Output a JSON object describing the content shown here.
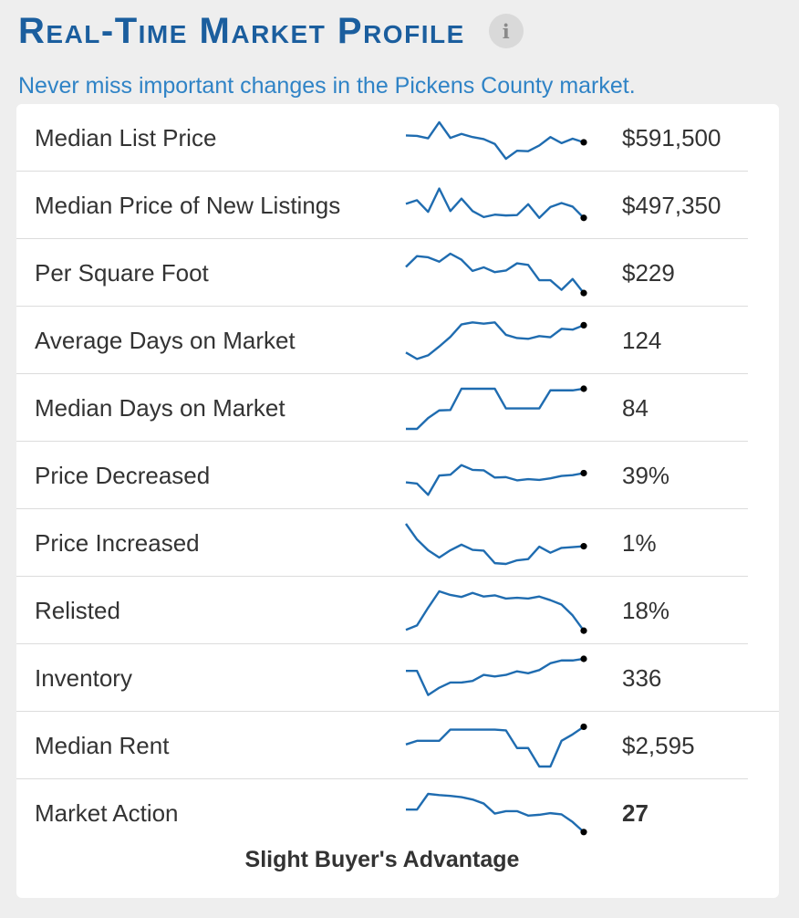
{
  "header": {
    "title": "Real-Time Market Profile",
    "info_icon_glyph": "i",
    "subtitle": "Never miss important changes in the Pickens County market."
  },
  "colors": {
    "title": "#1b5e9e",
    "subtitle": "#2f83c6",
    "sparkline": "#1f6cb0",
    "end_dot": "#000000"
  },
  "rows": [
    {
      "label": "Median List Price",
      "value": "$591,500",
      "trend": [
        58,
        57,
        51,
        91,
        52,
        62,
        54,
        49,
        37,
        0,
        20,
        19,
        33,
        54,
        39,
        50,
        41
      ]
    },
    {
      "label": "Median Price of New Listings",
      "value": "$497,350",
      "trend": [
        56,
        65,
        36,
        94,
        38,
        69,
        38,
        23,
        29,
        27,
        28,
        55,
        21,
        48,
        58,
        49,
        21
      ]
    },
    {
      "label": "Per Square Foot",
      "value": "$229",
      "trend": [
        67,
        94,
        91,
        80,
        100,
        85,
        57,
        66,
        54,
        58,
        76,
        72,
        34,
        34,
        10,
        37,
        2
      ]
    },
    {
      "label": "Average Days on Market",
      "value": "124",
      "trend": [
        22,
        6,
        15,
        37,
        61,
        92,
        97,
        94,
        97,
        66,
        58,
        56,
        63,
        60,
        81,
        79,
        90
      ]
    },
    {
      "label": "Median Days on Market",
      "value": "84",
      "trend": [
        0,
        0,
        27,
        46,
        47,
        100,
        100,
        100,
        100,
        51,
        51,
        51,
        51,
        96,
        96,
        96,
        100
      ]
    },
    {
      "label": "Price Decreased",
      "value": "39%",
      "trend": [
        35,
        32,
        4,
        52,
        54,
        78,
        66,
        65,
        47,
        48,
        40,
        43,
        41,
        45,
        51,
        53,
        58
      ]
    },
    {
      "label": "Price Increased",
      "value": "1%",
      "trend": [
        100,
        61,
        34,
        16,
        34,
        48,
        35,
        33,
        2,
        0,
        9,
        12,
        43,
        28,
        40,
        42,
        44
      ]
    },
    {
      "label": "Relisted",
      "value": "18%",
      "trend": [
        4,
        15,
        59,
        100,
        91,
        86,
        96,
        87,
        90,
        82,
        84,
        82,
        87,
        78,
        67,
        40,
        2
      ]
    },
    {
      "label": "Inventory",
      "value": "336",
      "trend": [
        70,
        70,
        10,
        28,
        41,
        41,
        45,
        60,
        56,
        60,
        69,
        64,
        72,
        89,
        96,
        96,
        100
      ]
    },
    {
      "label": "Median Rent",
      "value": "$2,595",
      "trend": [
        55,
        64,
        64,
        64,
        92,
        92,
        92,
        92,
        92,
        90,
        46,
        46,
        0,
        0,
        64,
        80,
        99
      ]
    },
    {
      "label": "Market Action",
      "value": "27",
      "bold": true,
      "trend": [
        61,
        61,
        100,
        97,
        95,
        92,
        86,
        76,
        51,
        57,
        57,
        46,
        48,
        52,
        49,
        30,
        5
      ]
    }
  ],
  "footer": {
    "market_label": "Slight Buyer's Advantage"
  }
}
